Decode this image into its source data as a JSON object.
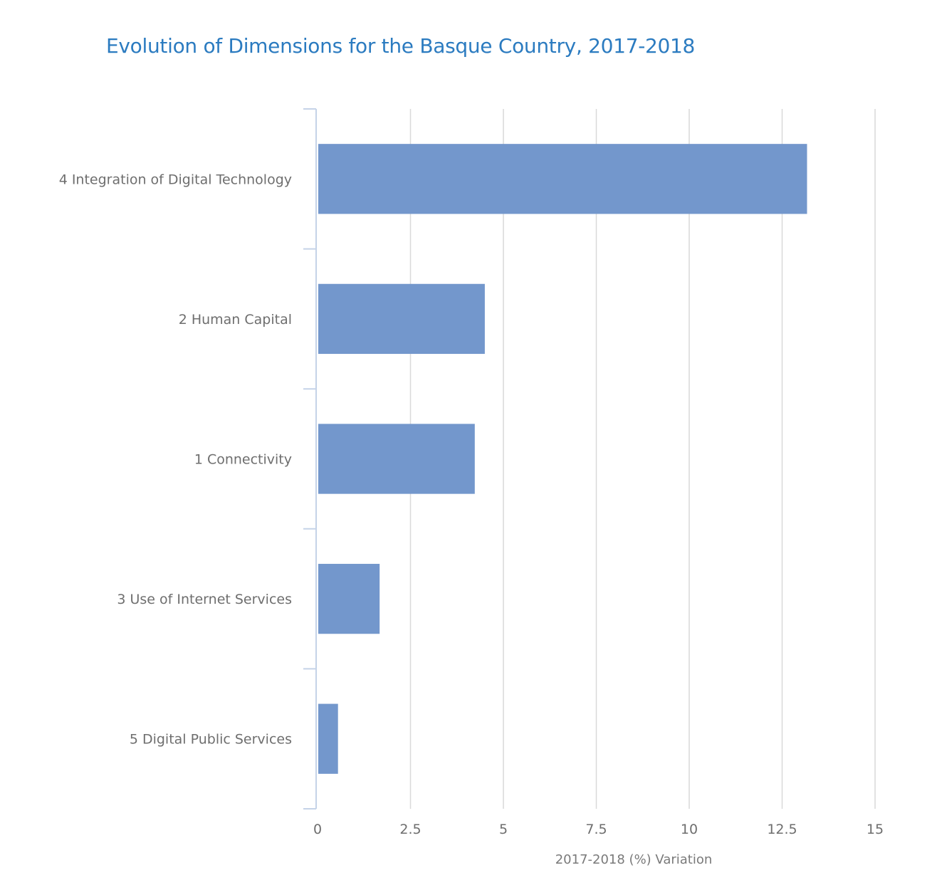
{
  "chart_data": {
    "type": "bar",
    "orientation": "horizontal",
    "title": "Evolution of Dimensions for the Basque Country, 2017-2018",
    "xlabel": "2017-2018 (%) Variation",
    "ylabel": "",
    "categories": [
      "4 Integration of Digital Technology",
      "2 Human Capital",
      "1 Connectivity",
      "3 Use of Internet Services",
      "5 Digital Public Services"
    ],
    "values": [
      13.17,
      4.5,
      4.23,
      1.67,
      0.55
    ],
    "xlim": [
      0,
      15
    ],
    "xticks": [
      "0",
      "2.5",
      "5",
      "7.5",
      "10",
      "12.5",
      "15"
    ],
    "grid": true,
    "legend": "none",
    "colors": {
      "bar": "#7397cc",
      "grid": "#d9d9d9",
      "axis": "#c5d3e8",
      "title": "#2b7bc0",
      "text": "#6e6e6e"
    }
  }
}
